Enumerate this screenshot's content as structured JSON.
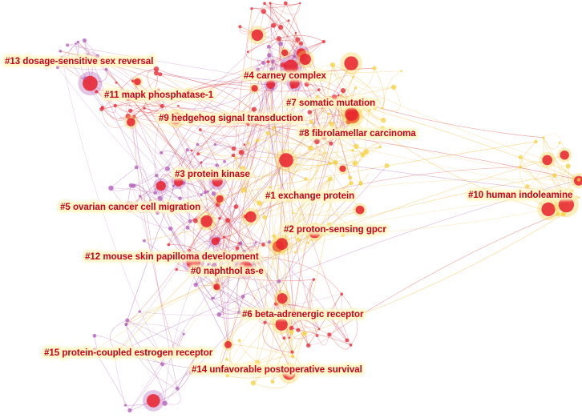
{
  "clusters": [
    {
      "id": "c13",
      "label": "#13 dosage-sensitive sex reversal"
    },
    {
      "id": "c4",
      "label": "#4 carney complex"
    },
    {
      "id": "c11",
      "label": "#11 mapk phosphatase-1"
    },
    {
      "id": "c7",
      "label": "#7 somatic mutation"
    },
    {
      "id": "c9",
      "label": "#9 hedgehog signal transduction"
    },
    {
      "id": "c8",
      "label": "#8 fibrolamellar carcinoma"
    },
    {
      "id": "c3",
      "label": "#3 protein kinase"
    },
    {
      "id": "c1",
      "label": "#1 exchange protein"
    },
    {
      "id": "c10",
      "label": "#10 human indoleamine"
    },
    {
      "id": "c5",
      "label": "#5 ovarian cancer cell migration"
    },
    {
      "id": "c2",
      "label": "#2 proton-sensing gpcr"
    },
    {
      "id": "c12",
      "label": "#12 mouse skin papilloma development"
    },
    {
      "id": "c0",
      "label": "#0 naphthol as-e"
    },
    {
      "id": "c6",
      "label": "#6 beta-adrenergic receptor"
    },
    {
      "id": "c15",
      "label": "#15 protein-coupled estrogen receptor"
    },
    {
      "id": "c14",
      "label": "#14 unfavorable postoperative survival"
    }
  ],
  "colors": {
    "label_text": "#c8001e",
    "label_halo": "#fff6c2",
    "edge_purple": "#b46ab4",
    "edge_yellow": "#f2c24a",
    "edge_red": "#e05050",
    "node_red": "#e8202c",
    "node_yellow": "#f5d23c",
    "node_purple": "#b05ab8"
  }
}
